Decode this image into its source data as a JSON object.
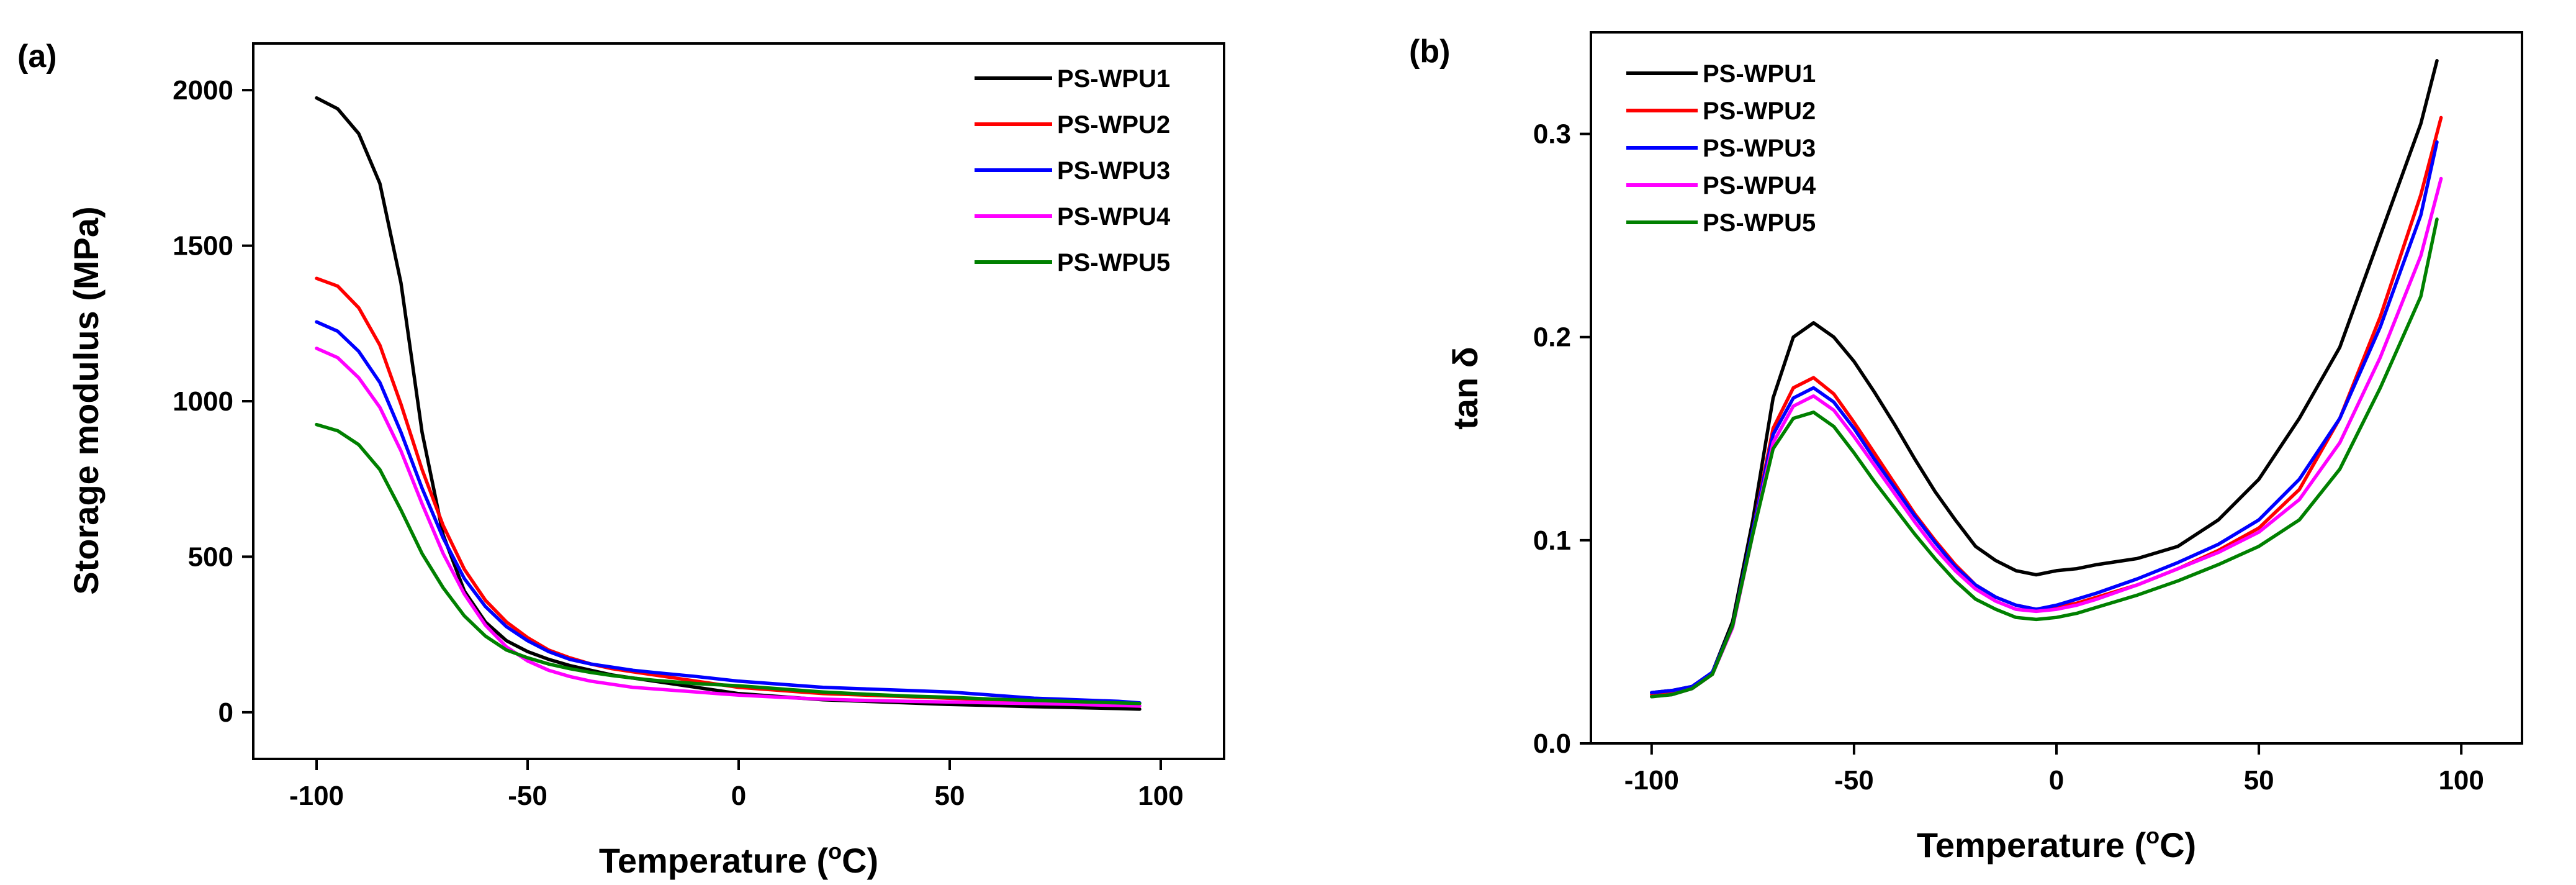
{
  "colors": {
    "PS-WPU1": "#000000",
    "PS-WPU2": "#ff0000",
    "PS-WPU3": "#0000ff",
    "PS-WPU4": "#ff00ff",
    "PS-WPU5": "#008000"
  },
  "chart_data": [
    {
      "id": "a",
      "panel_label": "(a)",
      "type": "line",
      "xlabel_main": "Temperature (",
      "xlabel_sup": "o",
      "xlabel_end": "C)",
      "ylabel": "Storage modulus (MPa)",
      "xlim": [
        -115,
        115
      ],
      "ylim": [
        -150,
        2150
      ],
      "xticks": [
        -100,
        -50,
        0,
        50,
        100
      ],
      "yticks": [
        0,
        500,
        1000,
        1500,
        2000
      ],
      "ytick_labels": [
        "0",
        "500",
        "1000",
        "1500",
        "2000"
      ],
      "legend_position": "top-right",
      "series": [
        {
          "name": "PS-WPU1",
          "x": [
            -100,
            -95,
            -90,
            -85,
            -80,
            -75,
            -70,
            -65,
            -60,
            -55,
            -50,
            -45,
            -40,
            -35,
            -30,
            -25,
            -20,
            -10,
            0,
            10,
            20,
            30,
            40,
            50,
            60,
            70,
            80,
            90,
            95
          ],
          "y": [
            1975,
            1940,
            1860,
            1700,
            1380,
            900,
            570,
            390,
            290,
            230,
            195,
            170,
            150,
            135,
            120,
            110,
            100,
            80,
            60,
            50,
            40,
            35,
            30,
            25,
            22,
            18,
            15,
            12,
            10
          ]
        },
        {
          "name": "PS-WPU2",
          "x": [
            -100,
            -95,
            -90,
            -85,
            -80,
            -75,
            -70,
            -65,
            -60,
            -55,
            -50,
            -45,
            -40,
            -35,
            -30,
            -25,
            -20,
            -10,
            0,
            10,
            20,
            30,
            40,
            50,
            60,
            70,
            80,
            90,
            95
          ],
          "y": [
            1395,
            1370,
            1300,
            1180,
            990,
            780,
            600,
            460,
            360,
            290,
            240,
            200,
            175,
            155,
            140,
            130,
            120,
            100,
            80,
            70,
            60,
            55,
            50,
            45,
            40,
            35,
            30,
            25,
            20
          ]
        },
        {
          "name": "PS-WPU3",
          "x": [
            -100,
            -95,
            -90,
            -85,
            -80,
            -75,
            -70,
            -65,
            -60,
            -55,
            -50,
            -45,
            -40,
            -35,
            -30,
            -25,
            -20,
            -10,
            0,
            10,
            20,
            30,
            40,
            50,
            60,
            70,
            80,
            90,
            95
          ],
          "y": [
            1255,
            1225,
            1160,
            1060,
            900,
            720,
            560,
            430,
            340,
            275,
            230,
            195,
            170,
            155,
            145,
            135,
            128,
            115,
            100,
            90,
            80,
            75,
            70,
            65,
            55,
            45,
            40,
            35,
            30
          ]
        },
        {
          "name": "PS-WPU4",
          "x": [
            -100,
            -95,
            -90,
            -85,
            -80,
            -75,
            -70,
            -65,
            -60,
            -55,
            -50,
            -45,
            -40,
            -35,
            -30,
            -25,
            -20,
            -10,
            0,
            10,
            20,
            30,
            40,
            50,
            60,
            70,
            80,
            90,
            95
          ],
          "y": [
            1170,
            1140,
            1075,
            980,
            840,
            670,
            510,
            380,
            280,
            210,
            165,
            135,
            115,
            100,
            90,
            80,
            75,
            65,
            55,
            48,
            42,
            38,
            35,
            33,
            30,
            28,
            25,
            22,
            20
          ]
        },
        {
          "name": "PS-WPU5",
          "x": [
            -100,
            -95,
            -90,
            -85,
            -80,
            -75,
            -70,
            -65,
            -60,
            -55,
            -50,
            -45,
            -40,
            -35,
            -30,
            -25,
            -20,
            -10,
            0,
            10,
            20,
            30,
            40,
            50,
            60,
            70,
            80,
            90,
            95
          ],
          "y": [
            925,
            905,
            860,
            780,
            650,
            510,
            400,
            310,
            245,
            200,
            175,
            155,
            140,
            128,
            118,
            110,
            103,
            92,
            85,
            75,
            65,
            58,
            52,
            48,
            42,
            38,
            34,
            30,
            28
          ]
        }
      ],
      "legend": [
        "PS-WPU1",
        "PS-WPU2",
        "PS-WPU3",
        "PS-WPU4",
        "PS-WPU5"
      ]
    },
    {
      "id": "b",
      "panel_label": "(b)",
      "type": "line",
      "xlabel_main": "Temperature (",
      "xlabel_sup": "o",
      "xlabel_end": "C)",
      "ylabel": "tan δ",
      "xlim": [
        -115,
        115
      ],
      "ylim": [
        0.0,
        0.35
      ],
      "xticks": [
        -100,
        -50,
        0,
        50,
        100
      ],
      "yticks": [
        0.0,
        0.1,
        0.2,
        0.3
      ],
      "ytick_labels": [
        "0.0",
        "0.1",
        "0.2",
        "0.3"
      ],
      "legend_position": "top-left",
      "series": [
        {
          "name": "PS-WPU1",
          "x": [
            -100,
            -95,
            -90,
            -85,
            -80,
            -75,
            -70,
            -65,
            -60,
            -55,
            -50,
            -45,
            -40,
            -35,
            -30,
            -25,
            -20,
            -15,
            -10,
            -5,
            0,
            5,
            10,
            20,
            30,
            40,
            50,
            60,
            70,
            80,
            90,
            94
          ],
          "y": [
            0.025,
            0.026,
            0.028,
            0.035,
            0.06,
            0.11,
            0.17,
            0.2,
            0.207,
            0.2,
            0.188,
            0.173,
            0.157,
            0.14,
            0.124,
            0.11,
            0.097,
            0.09,
            0.085,
            0.083,
            0.085,
            0.086,
            0.088,
            0.091,
            0.097,
            0.11,
            0.13,
            0.16,
            0.195,
            0.25,
            0.305,
            0.336
          ]
        },
        {
          "name": "PS-WPU2",
          "x": [
            -100,
            -95,
            -90,
            -85,
            -80,
            -75,
            -70,
            -65,
            -60,
            -55,
            -50,
            -45,
            -40,
            -35,
            -30,
            -25,
            -20,
            -15,
            -10,
            -5,
            0,
            5,
            10,
            20,
            30,
            40,
            50,
            60,
            70,
            80,
            90,
            95
          ],
          "y": [
            0.024,
            0.025,
            0.027,
            0.034,
            0.058,
            0.105,
            0.155,
            0.175,
            0.18,
            0.172,
            0.158,
            0.143,
            0.128,
            0.113,
            0.1,
            0.088,
            0.078,
            0.072,
            0.068,
            0.066,
            0.067,
            0.069,
            0.072,
            0.078,
            0.086,
            0.095,
            0.106,
            0.125,
            0.16,
            0.21,
            0.27,
            0.308
          ]
        },
        {
          "name": "PS-WPU3",
          "x": [
            -100,
            -95,
            -90,
            -85,
            -80,
            -75,
            -70,
            -65,
            -60,
            -55,
            -50,
            -45,
            -40,
            -35,
            -30,
            -25,
            -20,
            -15,
            -10,
            -5,
            0,
            5,
            10,
            20,
            30,
            40,
            50,
            60,
            70,
            80,
            90,
            94
          ],
          "y": [
            0.025,
            0.026,
            0.028,
            0.035,
            0.058,
            0.105,
            0.152,
            0.17,
            0.175,
            0.168,
            0.155,
            0.14,
            0.126,
            0.112,
            0.099,
            0.087,
            0.078,
            0.072,
            0.068,
            0.066,
            0.068,
            0.071,
            0.074,
            0.081,
            0.089,
            0.098,
            0.11,
            0.13,
            0.16,
            0.205,
            0.26,
            0.296
          ]
        },
        {
          "name": "PS-WPU4",
          "x": [
            -100,
            -95,
            -90,
            -85,
            -80,
            -75,
            -70,
            -65,
            -60,
            -55,
            -50,
            -45,
            -40,
            -35,
            -30,
            -25,
            -20,
            -15,
            -10,
            -5,
            0,
            5,
            10,
            20,
            30,
            40,
            50,
            60,
            70,
            80,
            90,
            95
          ],
          "y": [
            0.023,
            0.024,
            0.027,
            0.034,
            0.057,
            0.103,
            0.148,
            0.166,
            0.171,
            0.164,
            0.151,
            0.137,
            0.123,
            0.109,
            0.096,
            0.085,
            0.076,
            0.07,
            0.066,
            0.065,
            0.066,
            0.068,
            0.071,
            0.078,
            0.086,
            0.094,
            0.104,
            0.12,
            0.148,
            0.19,
            0.24,
            0.278
          ]
        },
        {
          "name": "PS-WPU5",
          "x": [
            -100,
            -95,
            -90,
            -85,
            -80,
            -75,
            -70,
            -65,
            -60,
            -55,
            -50,
            -45,
            -40,
            -35,
            -30,
            -25,
            -20,
            -15,
            -10,
            -5,
            0,
            5,
            10,
            20,
            30,
            40,
            50,
            60,
            70,
            80,
            90,
            94
          ],
          "y": [
            0.023,
            0.024,
            0.027,
            0.034,
            0.058,
            0.103,
            0.145,
            0.16,
            0.163,
            0.156,
            0.143,
            0.129,
            0.116,
            0.103,
            0.091,
            0.08,
            0.071,
            0.066,
            0.062,
            0.061,
            0.062,
            0.064,
            0.067,
            0.073,
            0.08,
            0.088,
            0.097,
            0.11,
            0.135,
            0.175,
            0.22,
            0.258
          ]
        }
      ],
      "legend": [
        "PS-WPU1",
        "PS-WPU2",
        "PS-WPU3",
        "PS-WPU4",
        "PS-WPU5"
      ]
    }
  ]
}
